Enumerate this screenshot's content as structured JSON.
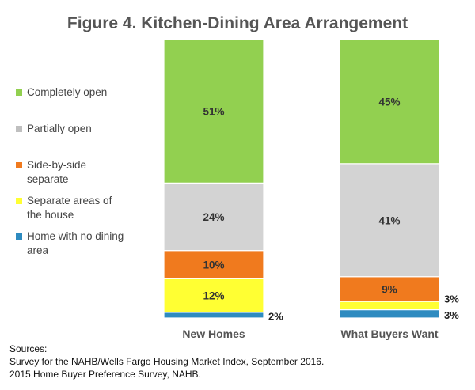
{
  "title": "Figure 4. Kitchen-Dining Area Arrangement",
  "chart_data": {
    "type": "bar",
    "stacked": true,
    "percent": true,
    "categories": [
      "New Homes",
      "What Buyers Want"
    ],
    "series": [
      {
        "name": "Home with no dining area",
        "values": [
          2,
          3
        ],
        "color": "#2E8BC0",
        "labels": [
          "2%",
          "3%"
        ]
      },
      {
        "name": "Separate areas of the house",
        "values": [
          12,
          3
        ],
        "color": "#FFFF33",
        "labels": [
          "12%",
          "3%"
        ]
      },
      {
        "name": "Side-by-side separate",
        "values": [
          10,
          9
        ],
        "color": "#F07A1E",
        "labels": [
          "10%",
          "9%"
        ]
      },
      {
        "name": "Partially open",
        "values": [
          24,
          41
        ],
        "color": "#D3D3D3",
        "labels": [
          "24%",
          "41%"
        ]
      },
      {
        "name": "Completely open",
        "values": [
          51,
          45
        ],
        "color": "#92D050",
        "labels": [
          "51%",
          "45%"
        ]
      }
    ],
    "legend": {
      "position": "left",
      "items": [
        {
          "lines": [
            "Completely open"
          ],
          "color": "#92D050"
        },
        {
          "lines": [
            "Partially open"
          ],
          "color": "#BFBFBF"
        },
        {
          "lines": [
            "Side-by-side",
            "separate"
          ],
          "color": "#F07A1E"
        },
        {
          "lines": [
            "Separate areas of",
            "the house"
          ],
          "color": "#FFFF33"
        },
        {
          "lines": [
            "Home with no dining",
            "area"
          ],
          "color": "#2E8BC0"
        }
      ]
    },
    "grid": false
  },
  "sources": {
    "heading": "Sources:",
    "lines": [
      "Survey for the NAHB/Wells Fargo Housing Market Index, September 2016.",
      "2015 Home Buyer Preference Survey, NAHB."
    ]
  }
}
